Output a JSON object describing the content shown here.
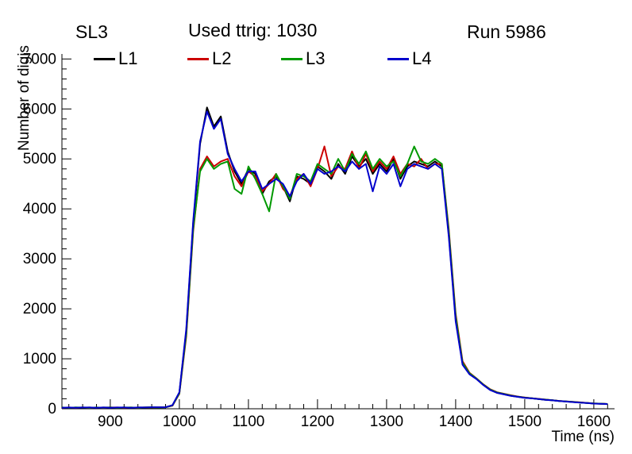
{
  "header": {
    "left_label": "SL3",
    "center_label": "Used ttrig: 1030",
    "right_label": "Run 5986"
  },
  "axes": {
    "y_title": "Number of digis",
    "x_title": "Time (ns)",
    "x_ticks": [
      900,
      1000,
      1100,
      1200,
      1300,
      1400,
      1500,
      1600
    ],
    "y_ticks": [
      0,
      1000,
      2000,
      3000,
      4000,
      5000,
      6000,
      7000
    ],
    "x_range": [
      830,
      1630
    ],
    "y_range": [
      0,
      7100
    ],
    "x_minor_step": 20,
    "y_minor_step": 200,
    "axis_color": "#000000"
  },
  "chart_data": {
    "type": "line",
    "title": "Used ttrig: 1030",
    "subtitle_left": "SL3",
    "subtitle_right": "Run 5986",
    "xlabel": "Time (ns)",
    "ylabel": "Number of digis",
    "xlim": [
      830,
      1630
    ],
    "ylim": [
      0,
      7100
    ],
    "grid": false,
    "legend_position": "top",
    "x": [
      830,
      840,
      850,
      860,
      870,
      880,
      890,
      900,
      910,
      920,
      930,
      940,
      950,
      960,
      970,
      980,
      990,
      1000,
      1010,
      1020,
      1030,
      1040,
      1050,
      1060,
      1070,
      1080,
      1090,
      1100,
      1110,
      1120,
      1130,
      1140,
      1150,
      1160,
      1170,
      1180,
      1190,
      1200,
      1210,
      1220,
      1230,
      1240,
      1250,
      1260,
      1270,
      1280,
      1290,
      1300,
      1310,
      1320,
      1330,
      1340,
      1350,
      1360,
      1370,
      1380,
      1390,
      1400,
      1410,
      1420,
      1430,
      1440,
      1450,
      1460,
      1470,
      1480,
      1490,
      1500,
      1510,
      1520,
      1530,
      1540,
      1550,
      1560,
      1570,
      1580,
      1590,
      1600,
      1610,
      1620
    ],
    "series": [
      {
        "name": "L1",
        "color": "#000000",
        "values": [
          25,
          20,
          25,
          20,
          25,
          20,
          25,
          25,
          20,
          25,
          20,
          25,
          25,
          30,
          25,
          30,
          70,
          320,
          1550,
          3700,
          5300,
          6030,
          5650,
          5850,
          5150,
          4750,
          4500,
          4800,
          4700,
          4300,
          4550,
          4650,
          4450,
          4150,
          4650,
          4600,
          4500,
          4850,
          4750,
          4600,
          4900,
          4700,
          5050,
          4850,
          5000,
          4700,
          4900,
          4750,
          5000,
          4600,
          4850,
          4950,
          4900,
          4850,
          4950,
          4850,
          3500,
          1800,
          900,
          700,
          600,
          480,
          380,
          320,
          290,
          260,
          240,
          220,
          210,
          195,
          180,
          170,
          155,
          145,
          135,
          125,
          115,
          105,
          100,
          95
        ]
      },
      {
        "name": "L2",
        "color": "#cc0000",
        "values": [
          20,
          25,
          20,
          25,
          20,
          25,
          20,
          25,
          25,
          20,
          25,
          20,
          25,
          25,
          30,
          30,
          60,
          300,
          1450,
          3550,
          4800,
          5050,
          4850,
          4950,
          5000,
          4650,
          4450,
          4750,
          4650,
          4350,
          4500,
          4700,
          4400,
          4250,
          4600,
          4700,
          4450,
          4800,
          5250,
          4650,
          4850,
          4800,
          5150,
          4800,
          5100,
          4750,
          4950,
          4800,
          5050,
          4700,
          4900,
          4850,
          5000,
          4800,
          4900,
          4900,
          3600,
          1900,
          950,
          720,
          610,
          490,
          390,
          330,
          300,
          270,
          245,
          225,
          212,
          198,
          185,
          172,
          158,
          148,
          138,
          128,
          118,
          108,
          102,
          96
        ]
      },
      {
        "name": "L3",
        "color": "#009900",
        "values": [
          25,
          20,
          25,
          25,
          20,
          25,
          20,
          25,
          20,
          25,
          25,
          20,
          25,
          30,
          25,
          30,
          65,
          310,
          1500,
          3600,
          4750,
          5000,
          4800,
          4900,
          4950,
          4400,
          4300,
          4850,
          4600,
          4300,
          3950,
          4700,
          4450,
          4200,
          4700,
          4650,
          4550,
          4900,
          4800,
          4700,
          5000,
          4750,
          5100,
          4900,
          5150,
          4800,
          5000,
          4850,
          4950,
          4650,
          4900,
          5250,
          4950,
          4900,
          5000,
          4900,
          3550,
          1850,
          920,
          710,
          605,
          485,
          385,
          325,
          295,
          265,
          242,
          222,
          210,
          196,
          182,
          170,
          156,
          146,
          136,
          126,
          116,
          106,
          101,
          95
        ]
      },
      {
        "name": "L4",
        "color": "#0000cc",
        "values": [
          20,
          25,
          20,
          25,
          25,
          20,
          25,
          20,
          25,
          25,
          20,
          25,
          25,
          30,
          30,
          30,
          70,
          330,
          1600,
          3750,
          5350,
          5950,
          5600,
          5800,
          5100,
          4800,
          4550,
          4750,
          4750,
          4400,
          4500,
          4600,
          4500,
          4250,
          4550,
          4700,
          4500,
          4800,
          4700,
          4750,
          4850,
          4750,
          4950,
          4800,
          4900,
          4350,
          4850,
          4700,
          4900,
          4450,
          4800,
          4900,
          4850,
          4800,
          4900,
          4800,
          3450,
          1750,
          880,
          690,
          595,
          475,
          375,
          318,
          288,
          258,
          238,
          218,
          208,
          194,
          178,
          168,
          154,
          144,
          134,
          124,
          114,
          104,
          99,
          94
        ]
      }
    ]
  }
}
